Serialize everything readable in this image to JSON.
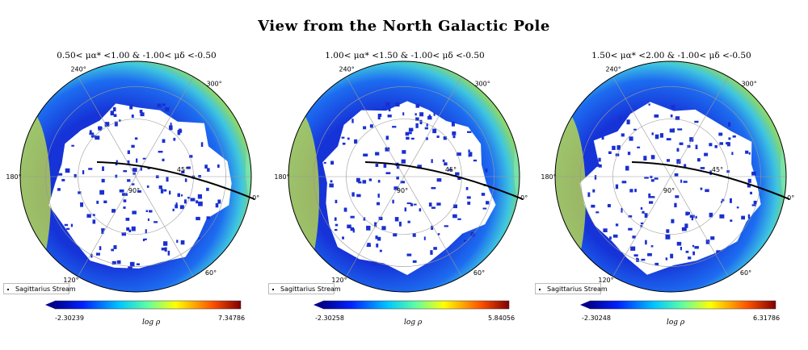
{
  "figure_title": "View from the North Galactic Pole",
  "chart_data": [
    {
      "type": "heatmap",
      "projection": "polar",
      "title": "0.50< μα* <1.00 & -1.00< μδ <-0.50",
      "angle_ticks": [
        "0°",
        "300°",
        "240°",
        "180°",
        "120°",
        "60°"
      ],
      "radial_ticks": [
        "45°",
        "90°"
      ],
      "colorbar": {
        "label": "log ρ",
        "min": "-2.30239",
        "max": "7.34786"
      },
      "legend": {
        "entries": [
          "Sagittarius Stream"
        ],
        "placement": "bottom-left"
      },
      "colormap": "jet"
    },
    {
      "type": "heatmap",
      "projection": "polar",
      "title": "1.00< μα* <1.50 & -1.00< μδ <-0.50",
      "angle_ticks": [
        "0°",
        "300°",
        "240°",
        "180°",
        "120°",
        "60°"
      ],
      "radial_ticks": [
        "45°",
        "90°"
      ],
      "colorbar": {
        "label": "log ρ",
        "min": "-2.30258",
        "max": "5.84056"
      },
      "legend": {
        "entries": [
          "Sagittarius Stream"
        ],
        "placement": "bottom-left"
      },
      "colormap": "jet"
    },
    {
      "type": "heatmap",
      "projection": "polar",
      "title": "1.50< μα* <2.00 & -1.00< μδ <-0.50",
      "angle_ticks": [
        "0°",
        "300°",
        "240°",
        "180°",
        "120°",
        "60°"
      ],
      "radial_ticks": [
        "45°",
        "90°"
      ],
      "colorbar": {
        "label": "log ρ",
        "min": "-2.30248",
        "max": "6.31786"
      },
      "legend": {
        "entries": [
          "Sagittarius Stream"
        ],
        "placement": "bottom-left"
      },
      "colormap": "jet"
    }
  ]
}
